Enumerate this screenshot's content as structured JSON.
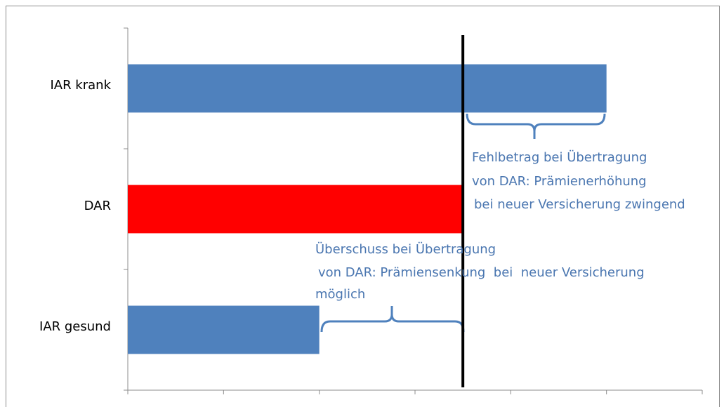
{
  "chart_data": {
    "type": "barh",
    "categories": [
      "IAR krank",
      "DAR",
      "IAR gesund"
    ],
    "values": [
      5,
      3.5,
      2
    ],
    "colors": [
      "#4f81bd",
      "#ff0000",
      "#4f81bd"
    ],
    "xlim": [
      0,
      6
    ],
    "xticks": [
      0,
      1,
      2,
      3,
      4,
      5,
      6
    ],
    "reference_line": 3.5,
    "annotations": [
      {
        "lines": [
          "Fehlbetrag bei Übertragung",
          "von DAR: Prämienerhöhung",
          "bei neuer Versicherung zwingend"
        ]
      },
      {
        "lines": [
          "Überschuss bei Übertragung",
          "von DAR: Prämiensenkung  bei  neuer Versicherung",
          "möglich"
        ]
      }
    ]
  }
}
